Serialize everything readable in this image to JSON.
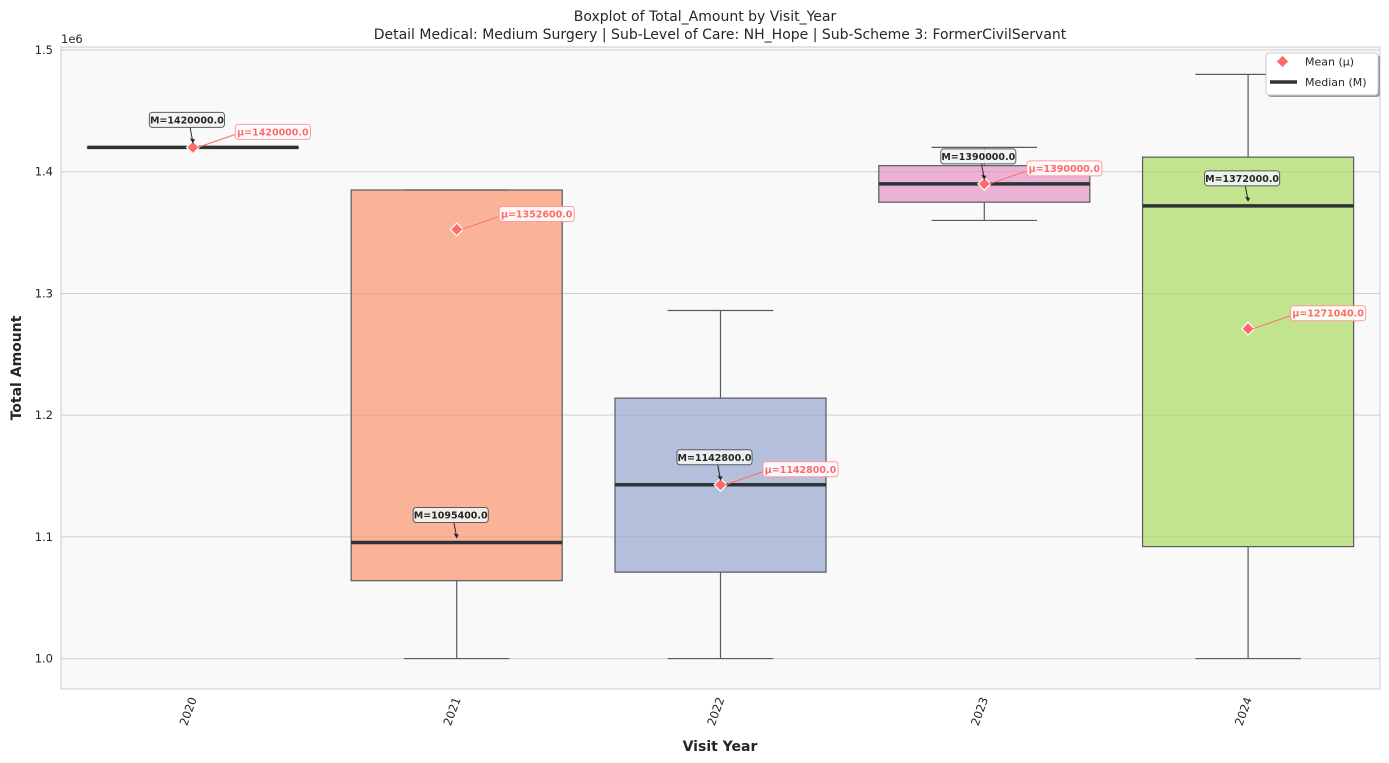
{
  "chart_data": {
    "type": "boxplot",
    "title": "Boxplot of Total_Amount by Visit_Year",
    "subtitle": "Detail Medical: Medium Surgery | Sub-Level of Care: NH_Hope | Sub-Scheme 3: FormerCivilServant",
    "xlabel": "Visit Year",
    "ylabel": "Total Amount",
    "y_offset_label": "1e6",
    "ylim": [
      0.975,
      1.5025
    ],
    "y_unit": 1000000,
    "y_ticks": [
      1.0,
      1.1,
      1.2,
      1.3,
      1.4,
      1.5
    ],
    "y_tick_labels": [
      "1.0",
      "1.1",
      "1.2",
      "1.3",
      "1.4",
      "1.5"
    ],
    "grid": true,
    "legend_position": "top-right",
    "legend": [
      {
        "label": "Mean (μ)",
        "marker": "diamond",
        "color": "#ff6b6b"
      },
      {
        "label": "Median (M)",
        "marker": "line",
        "color": "#2d3436"
      }
    ],
    "categories": [
      "2020",
      "2021",
      "2022",
      "2023",
      "2024"
    ],
    "boxes": [
      {
        "category": "2020",
        "whisker_low": 1.42,
        "q1": 1.42,
        "median": 1.42,
        "q3": 1.42,
        "whisker_high": 1.42,
        "mean": 1.42,
        "color": "#66c2a5",
        "median_label": "M=1420000.0",
        "mean_label": "μ=1420000.0"
      },
      {
        "category": "2021",
        "whisker_low": 1.0,
        "q1": 1.064,
        "median": 1.0954,
        "q3": 1.385,
        "whisker_high": 1.385,
        "mean": 1.3526,
        "color": "#fc8d62",
        "median_label": "M=1095400.0",
        "mean_label": "μ=1352600.0"
      },
      {
        "category": "2022",
        "whisker_low": 1.0,
        "q1": 1.071,
        "median": 1.1428,
        "q3": 1.214,
        "whisker_high": 1.286,
        "mean": 1.1428,
        "color": "#8da0cb",
        "median_label": "M=1142800.0",
        "mean_label": "μ=1142800.0"
      },
      {
        "category": "2023",
        "whisker_low": 1.36,
        "q1": 1.375,
        "median": 1.39,
        "q3": 1.405,
        "whisker_high": 1.42,
        "mean": 1.39,
        "color": "#e78ac3",
        "median_label": "M=1390000.0",
        "mean_label": "μ=1390000.0"
      },
      {
        "category": "2024",
        "whisker_low": 1.0,
        "q1": 1.092,
        "median": 1.372,
        "q3": 1.412,
        "whisker_high": 1.48,
        "mean": 1.27104,
        "color": "#a6d854",
        "median_label": "M=1372000.0",
        "mean_label": "μ=1271040.0"
      }
    ]
  }
}
